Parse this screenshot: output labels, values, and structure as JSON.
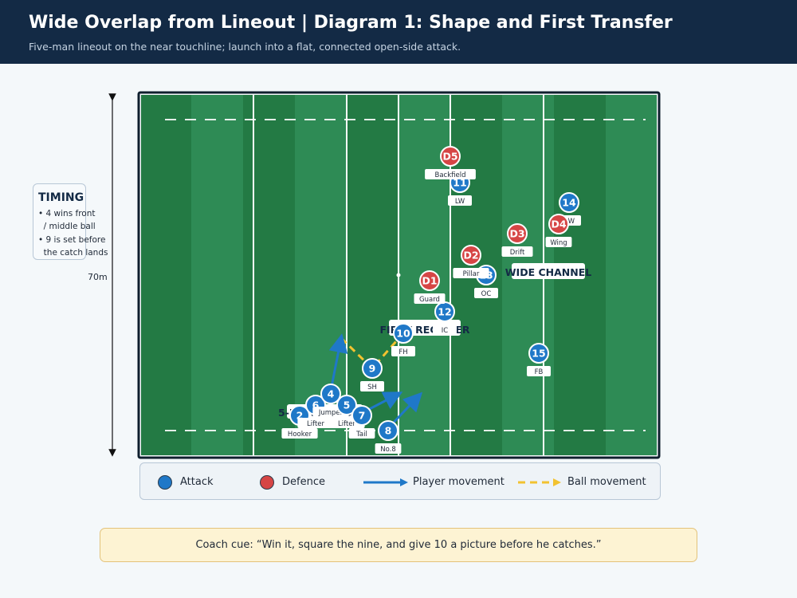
{
  "header": {
    "title": "Wide Overlap from Lineout | Diagram 1: Shape and First Transfer",
    "subtitle": "Five-man lineout on the near touchline; launch into a flat, connected open-side attack."
  },
  "timing": {
    "title": "TIMING",
    "items": [
      "• 4 wins front",
      "  / middle ball",
      "• 9 is set before",
      "  the catch lands"
    ]
  },
  "distance_label": "70m",
  "field_labels": {
    "first_receiver": "FIRST RECEIVER",
    "wide_channel": "WIDE CHANNEL",
    "lineout": "5-MAN LINEOUT"
  },
  "attack": [
    {
      "num": "2",
      "label": "Hooker"
    },
    {
      "num": "6",
      "label": "Lifter"
    },
    {
      "num": "4",
      "label": "Jumper"
    },
    {
      "num": "5",
      "label": "Lifter"
    },
    {
      "num": "7",
      "label": "Tail"
    },
    {
      "num": "8",
      "label": "No.8"
    },
    {
      "num": "9",
      "label": "SH"
    },
    {
      "num": "10",
      "label": "FH"
    },
    {
      "num": "12",
      "label": "IC"
    },
    {
      "num": "13",
      "label": "OC"
    },
    {
      "num": "11",
      "label": "LW"
    },
    {
      "num": "14",
      "label": "RW"
    },
    {
      "num": "15",
      "label": "FB"
    }
  ],
  "defence": [
    {
      "num": "D5",
      "label": "Backfield"
    },
    {
      "num": "D1",
      "label": "Guard"
    },
    {
      "num": "D2",
      "label": "Pillar"
    },
    {
      "num": "D3",
      "label": "Drift"
    },
    {
      "num": "D4",
      "label": "Wing"
    }
  ],
  "legend": {
    "attack": "Attack",
    "defence": "Defence",
    "player_movement": "Player movement",
    "ball_movement": "Ball movement"
  },
  "coach_cue": "Coach cue: “Win it, square the nine, and give 10 a picture before he catches.”",
  "colors": {
    "header_bg": "#132a45",
    "attack": "#1f78c8",
    "defence": "#d64545",
    "ball": "#f2c230",
    "pitch_dark": "#237a44",
    "pitch_light": "#2e8b55"
  }
}
